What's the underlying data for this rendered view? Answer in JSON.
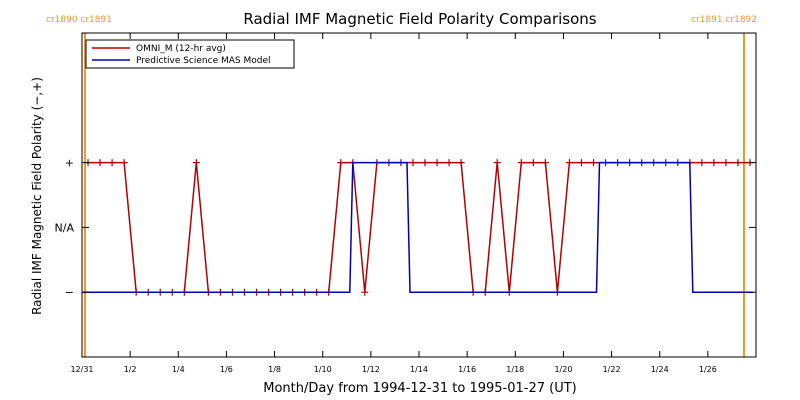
{
  "chart_data": {
    "type": "line",
    "title": "Radial IMF Magnetic Field Polarity Comparisons",
    "xlabel": "Month/Day from 1994-12-31 to 1995-01-27 (UT)",
    "ylabel": "Radial IMF Magnetic Field Polarity (−,+)",
    "xlim": [
      "1994-12-31T00:00",
      "1995-01-28T00:00"
    ],
    "x_tick_labels": [
      "12/31",
      "1/2",
      "1/4",
      "1/6",
      "1/8",
      "1/10",
      "1/12",
      "1/14",
      "1/16",
      "1/18",
      "1/20",
      "1/22",
      "1/24",
      "1/26"
    ],
    "x_ticks": [
      "1994-12-31",
      "1995-01-02",
      "1995-01-04",
      "1995-01-06",
      "1995-01-08",
      "1995-01-10",
      "1995-01-12",
      "1995-01-14",
      "1995-01-16",
      "1995-01-18",
      "1995-01-20",
      "1995-01-22",
      "1995-01-24",
      "1995-01-26"
    ],
    "y_tick_labels": [
      "−",
      "N/A",
      "+"
    ],
    "y_ticks": [
      -1,
      0,
      1
    ],
    "ylim": [
      -2,
      3
    ],
    "legend_position": "top-left",
    "series": [
      {
        "name": "OMNI_M (12-hr avg)",
        "color": "#b40000",
        "marker": "+",
        "x": [
          "1994-12-31T06:00",
          "1994-12-31T18:00",
          "1995-01-01T06:00",
          "1995-01-01T18:00",
          "1995-01-02T06:00",
          "1995-01-02T18:00",
          "1995-01-03T06:00",
          "1995-01-03T18:00",
          "1995-01-04T06:00",
          "1995-01-04T18:00",
          "1995-01-05T06:00",
          "1995-01-05T18:00",
          "1995-01-06T06:00",
          "1995-01-06T18:00",
          "1995-01-07T06:00",
          "1995-01-07T18:00",
          "1995-01-08T06:00",
          "1995-01-08T18:00",
          "1995-01-09T06:00",
          "1995-01-09T18:00",
          "1995-01-10T06:00",
          "1995-01-10T18:00",
          "1995-01-11T06:00",
          "1995-01-11T18:00",
          "1995-01-12T06:00",
          "1995-01-12T18:00",
          "1995-01-13T06:00",
          "1995-01-13T18:00",
          "1995-01-14T06:00",
          "1995-01-14T18:00",
          "1995-01-15T06:00",
          "1995-01-15T18:00",
          "1995-01-16T06:00",
          "1995-01-16T18:00",
          "1995-01-17T06:00",
          "1995-01-17T18:00",
          "1995-01-18T06:00",
          "1995-01-18T18:00",
          "1995-01-19T06:00",
          "1995-01-19T18:00",
          "1995-01-20T06:00",
          "1995-01-20T18:00",
          "1995-01-21T06:00",
          "1995-01-21T18:00",
          "1995-01-22T06:00",
          "1995-01-22T18:00",
          "1995-01-23T06:00",
          "1995-01-23T18:00",
          "1995-01-24T06:00",
          "1995-01-24T18:00",
          "1995-01-25T06:00",
          "1995-01-25T18:00",
          "1995-01-26T06:00",
          "1995-01-26T18:00",
          "1995-01-27T06:00",
          "1995-01-27T18:00"
        ],
        "values": [
          1,
          1,
          1,
          1,
          -1,
          -1,
          -1,
          -1,
          -1,
          1,
          -1,
          -1,
          -1,
          -1,
          -1,
          -1,
          -1,
          -1,
          -1,
          -1,
          -1,
          1,
          1,
          -1,
          1,
          1,
          1,
          1,
          1,
          1,
          1,
          1,
          -1,
          -1,
          1,
          -1,
          1,
          1,
          1,
          -1,
          1,
          1,
          1,
          1,
          1,
          1,
          1,
          1,
          1,
          1,
          1,
          1,
          1,
          1,
          1,
          1
        ]
      },
      {
        "name": "Predictive Science MAS Model",
        "color": "#0000b4",
        "step": true,
        "x": [
          "1994-12-31T00:00",
          "1995-01-11T03:00",
          "1995-01-11T06:00",
          "1995-01-13T12:00",
          "1995-01-13T15:00",
          "1995-01-21T09:00",
          "1995-01-21T12:00",
          "1995-01-25T06:00",
          "1995-01-25T09:00",
          "1995-01-27T21:00"
        ],
        "values": [
          -1,
          -1,
          1,
          1,
          -1,
          -1,
          1,
          1,
          -1,
          -1
        ]
      }
    ],
    "vertical_markers": {
      "color": "#f5961e",
      "lines": [
        "1994-12-31T03:00",
        "1995-01-27T12:00"
      ],
      "labels": [
        {
          "text": "cr1890 cr1891",
          "at": "1994-12-31T03:00",
          "anchor": "start"
        },
        {
          "text": "cr1891 cr1892",
          "at": "1995-01-27T12:00",
          "anchor": "end"
        }
      ]
    }
  }
}
